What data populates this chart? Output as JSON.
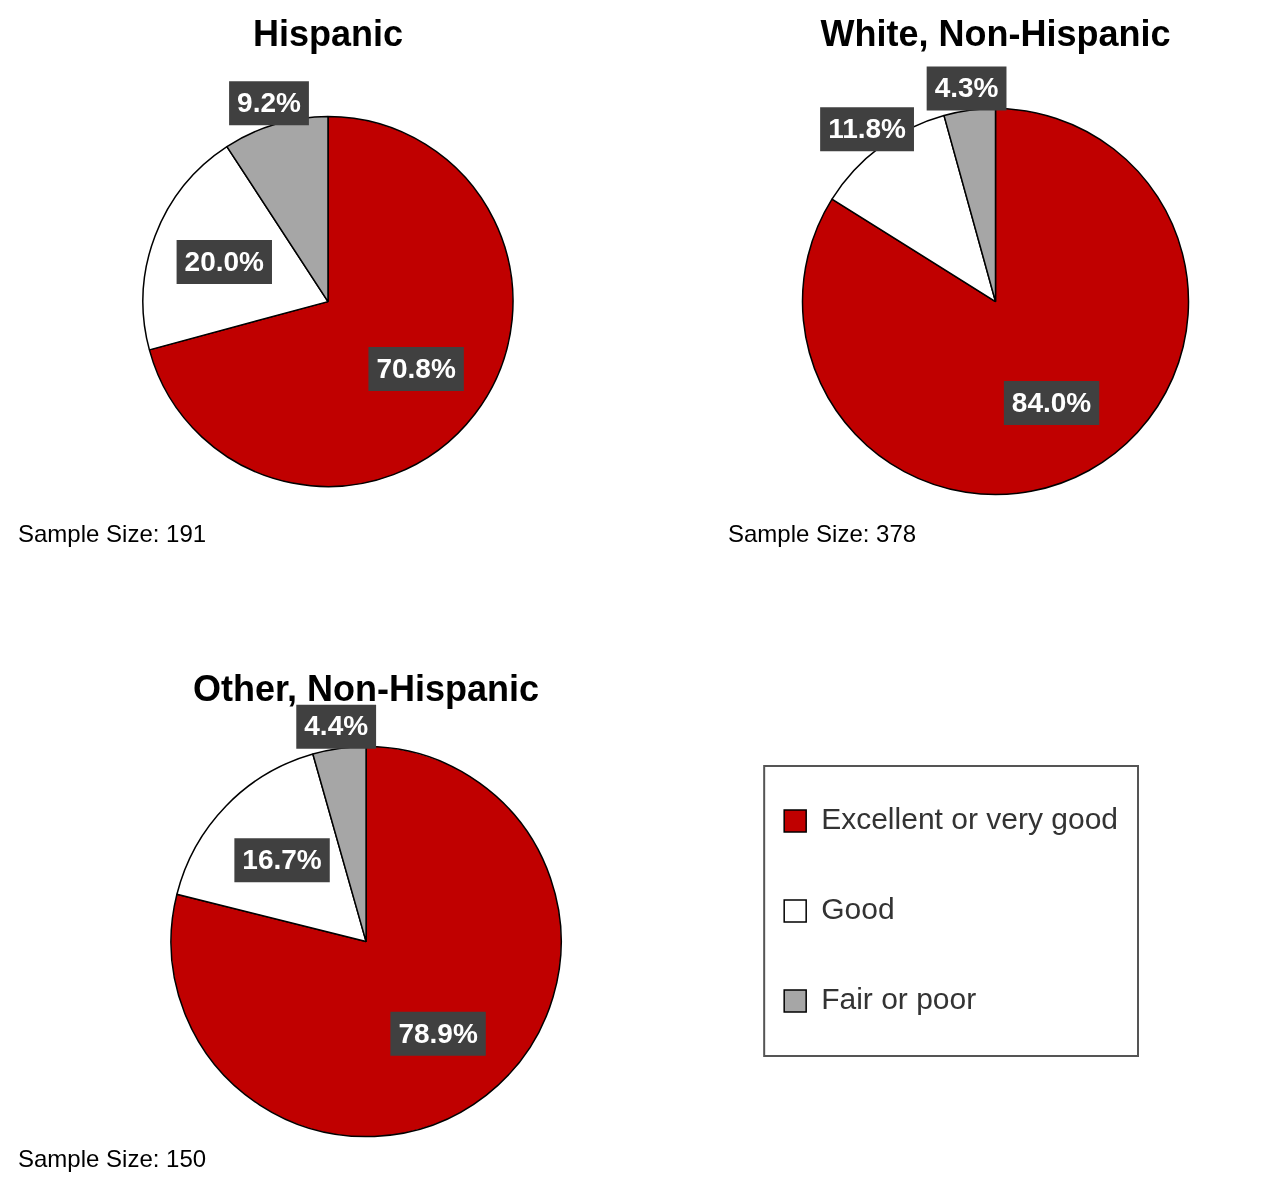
{
  "chart_data": [
    {
      "type": "pie",
      "title": "Hispanic",
      "categories": [
        null,
        null,
        null
      ],
      "values": [
        70.8,
        20.0,
        9.2
      ],
      "colors": [
        "#c00000",
        "#ffffff",
        "#a6a6a6"
      ],
      "value_labels": [
        "70.8%",
        "20.0%",
        "9.2%"
      ],
      "annotations": [
        "Sample Size: 191"
      ],
      "legend": false
    },
    {
      "type": "pie",
      "title": "White, Non-Hispanic",
      "categories": [
        null,
        null,
        null
      ],
      "values": [
        84.0,
        11.8,
        4.3
      ],
      "colors": [
        "#c00000",
        "#ffffff",
        "#a6a6a6"
      ],
      "value_labels": [
        "84.0%",
        "11.8%",
        "4.3%"
      ],
      "annotations": [
        "Sample Size: 378"
      ],
      "legend": false
    },
    {
      "type": "pie",
      "title": "Other, Non-Hispanic",
      "categories": [
        "Excellent or very good",
        "Good",
        "Fair or poor"
      ],
      "values": [
        78.9,
        16.7,
        4.4
      ],
      "colors": [
        "#c00000",
        "#ffffff",
        "#a6a6a6"
      ],
      "value_labels": [
        "78.9%",
        "16.7%",
        "4.4%"
      ],
      "annotations": [
        "Sample Size: 150"
      ],
      "legend": "right"
    }
  ]
}
